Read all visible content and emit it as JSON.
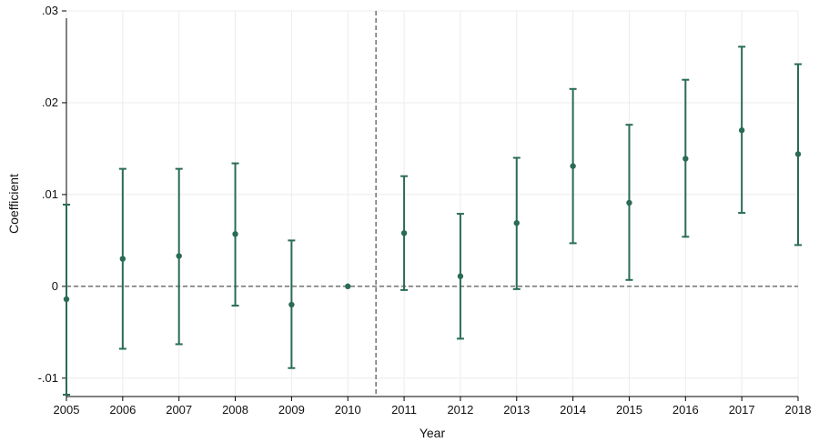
{
  "chart_data": {
    "type": "scatter",
    "title": "",
    "xlabel": "Year",
    "ylabel": "Coefficient",
    "x": [
      2005,
      2006,
      2007,
      2008,
      2009,
      2010,
      2011,
      2012,
      2013,
      2014,
      2015,
      2016,
      2017,
      2018
    ],
    "xlim": [
      2005,
      2018
    ],
    "ylim": [
      -0.012,
      0.03
    ],
    "yticks": [
      -0.01,
      0,
      0.01,
      0.02,
      0.03
    ],
    "ytick_labels": [
      "-.01",
      "0",
      ".01",
      ".02",
      ".03"
    ],
    "series": [
      {
        "values": [
          -0.0014,
          0.003,
          0.0033,
          0.0057,
          -0.002,
          0.0,
          0.0058,
          0.0011,
          0.0069,
          0.0131,
          0.0091,
          0.0139,
          0.017,
          0.0144
        ],
        "ci_lower": [
          -0.0118,
          -0.0068,
          -0.0063,
          -0.0021,
          -0.0089,
          0.0,
          -0.0004,
          -0.0057,
          -0.0003,
          0.0047,
          0.0007,
          0.0054,
          0.008,
          0.0045
        ],
        "ci_upper": [
          0.0089,
          0.0128,
          0.0128,
          0.0134,
          0.005,
          0.0,
          0.012,
          0.0079,
          0.014,
          0.0215,
          0.0176,
          0.0225,
          0.0261,
          0.0242
        ]
      }
    ],
    "reference_lines": {
      "horizontal_y": 0,
      "vertical_x": 2010.5
    },
    "grid": true,
    "legend": "none",
    "colors": {
      "marker": "#2a6b57",
      "reference": "#666666",
      "grid": "#ececec"
    }
  }
}
